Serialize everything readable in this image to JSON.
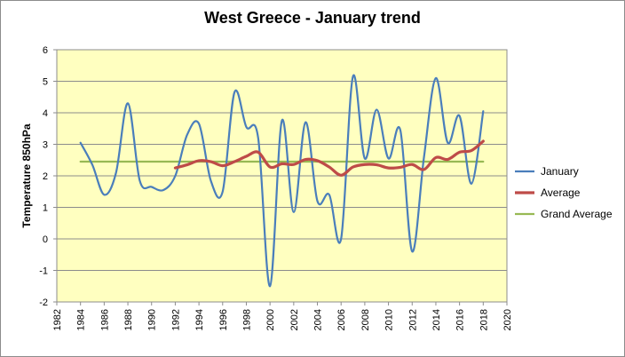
{
  "chart_data": {
    "type": "line",
    "title": "West Greece - January trend",
    "xlabel": "",
    "ylabel": "Temperature 850hPa",
    "xlim": [
      1982,
      2020
    ],
    "ylim": [
      -2,
      6
    ],
    "x_ticks": [
      1982,
      1984,
      1986,
      1988,
      1990,
      1992,
      1994,
      1996,
      1998,
      2000,
      2002,
      2004,
      2006,
      2008,
      2010,
      2012,
      2014,
      2016,
      2018,
      2020
    ],
    "y_ticks": [
      -2,
      -1,
      0,
      1,
      2,
      3,
      4,
      5,
      6
    ],
    "grid": "horizontal",
    "legend_position": "right",
    "plot_background": "#ffffc0",
    "series": [
      {
        "name": "January",
        "color": "#4a7ebb",
        "x": [
          1984,
          1985,
          1986,
          1987,
          1988,
          1989,
          1990,
          1991,
          1992,
          1993,
          1994,
          1995,
          1996,
          1997,
          1998,
          1999,
          2000,
          2001,
          2002,
          2003,
          2004,
          2005,
          2006,
          2007,
          2008,
          2009,
          2010,
          2011,
          2012,
          2013,
          2014,
          2015,
          2016,
          2017,
          2018
        ],
        "values": [
          3.05,
          2.35,
          1.4,
          2.1,
          4.3,
          1.85,
          1.65,
          1.55,
          2.0,
          3.3,
          3.65,
          1.85,
          1.5,
          4.65,
          3.55,
          3.2,
          -1.5,
          3.75,
          0.85,
          3.7,
          1.2,
          1.4,
          0.0,
          5.15,
          2.55,
          4.1,
          2.55,
          3.45,
          -0.4,
          2.6,
          5.1,
          3.05,
          3.9,
          1.75,
          4.05
        ]
      },
      {
        "name": "Average",
        "color": "#be4b48",
        "x": [
          1992,
          1993,
          1994,
          1995,
          1996,
          1997,
          1998,
          1999,
          2000,
          2001,
          2002,
          2003,
          2004,
          2005,
          2006,
          2007,
          2008,
          2009,
          2010,
          2011,
          2012,
          2013,
          2014,
          2015,
          2016,
          2017,
          2018
        ],
        "values": [
          2.25,
          2.35,
          2.48,
          2.45,
          2.32,
          2.45,
          2.62,
          2.75,
          2.28,
          2.38,
          2.36,
          2.52,
          2.48,
          2.28,
          2.02,
          2.28,
          2.36,
          2.35,
          2.25,
          2.27,
          2.36,
          2.2,
          2.58,
          2.52,
          2.75,
          2.8,
          3.1
        ]
      },
      {
        "name": "Grand Average",
        "color": "#98b954",
        "x": [
          1984,
          2018
        ],
        "values": [
          2.45,
          2.45
        ]
      }
    ]
  }
}
